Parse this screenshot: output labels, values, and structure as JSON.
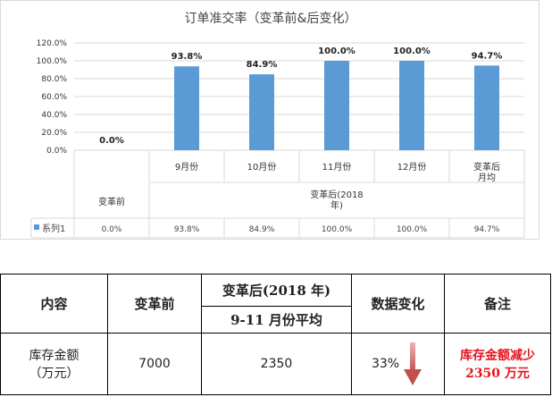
{
  "chart_data": {
    "type": "bar",
    "title": "订单准交率（变革前&后变化）",
    "categories": [
      "",
      "9月份",
      "10月份",
      "11月份",
      "12月份",
      "变革后\n月均"
    ],
    "group_labels": [
      "变革前",
      "变革后(2018\n年)"
    ],
    "series": [
      {
        "name": "系列1",
        "values": [
          0.0,
          93.8,
          84.9,
          100.0,
          100.0,
          94.7
        ],
        "labels": [
          "0.0%",
          "93.8%",
          "84.9%",
          "100.0%",
          "100.0%",
          "94.7%"
        ],
        "table_labels": [
          "0.0%",
          "93.8%",
          "84.9%",
          "100.0%",
          "100.0%",
          "94.7%"
        ],
        "color": "#5b9bd5"
      }
    ],
    "ylim": [
      0,
      120
    ],
    "yticks": [
      "0.0%",
      "20.0%",
      "40.0%",
      "60.0%",
      "80.0%",
      "100.0%",
      "120.0%"
    ],
    "grid": true,
    "legend": "data-table"
  },
  "summary_table": {
    "headers": {
      "content": "内容",
      "before": "变革前",
      "after_top": "变革后(2018 年)",
      "after_bottom": "9-11 月份平均",
      "change": "数据变化",
      "note": "备注"
    },
    "row": {
      "item": "库存金额\n（万元）",
      "before": "7000",
      "after": "2350",
      "change": "33%",
      "change_icon": "down-arrow-icon",
      "note": "库存金额减少\n2350 万元"
    },
    "colors": {
      "note": "#e8111b",
      "arrow": "#c0504d"
    }
  }
}
